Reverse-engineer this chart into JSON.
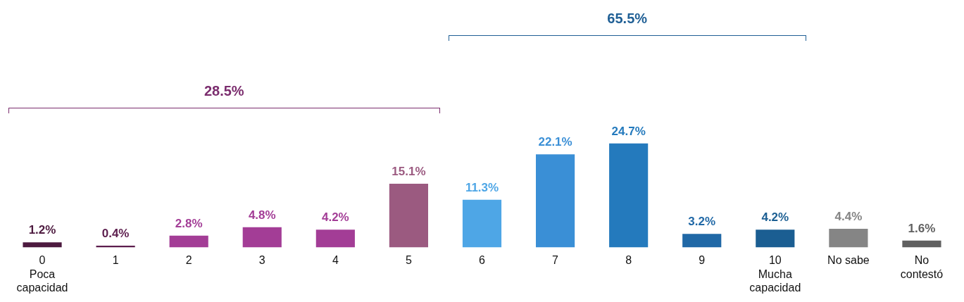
{
  "chart_data": {
    "type": "bar",
    "categories": [
      "0\nPoca\ncapacidad",
      "1",
      "2",
      "3",
      "4",
      "5",
      "6",
      "7",
      "8",
      "9",
      "10\nMucha\ncapacidad",
      "No sabe",
      "No\ncontestó"
    ],
    "values": [
      1.2,
      0.4,
      2.8,
      4.8,
      4.2,
      15.1,
      11.3,
      22.1,
      24.7,
      3.2,
      4.2,
      4.4,
      1.6
    ],
    "value_labels": [
      "1.2%",
      "0.4%",
      "2.8%",
      "4.8%",
      "4.2%",
      "15.1%",
      "11.3%",
      "22.1%",
      "24.7%",
      "3.2%",
      "4.2%",
      "4.4%",
      "1.6%"
    ],
    "colors": [
      "#4d1a3f",
      "#5c1d4d",
      "#a33d96",
      "#a33d96",
      "#a33d96",
      "#9b5a80",
      "#4ea6e6",
      "#3a8fd6",
      "#247abd",
      "#2068a6",
      "#1b5e92",
      "#858585",
      "#606060"
    ],
    "annotations": [
      "28.5%",
      "65.5%"
    ],
    "grid": false,
    "legend": false
  }
}
